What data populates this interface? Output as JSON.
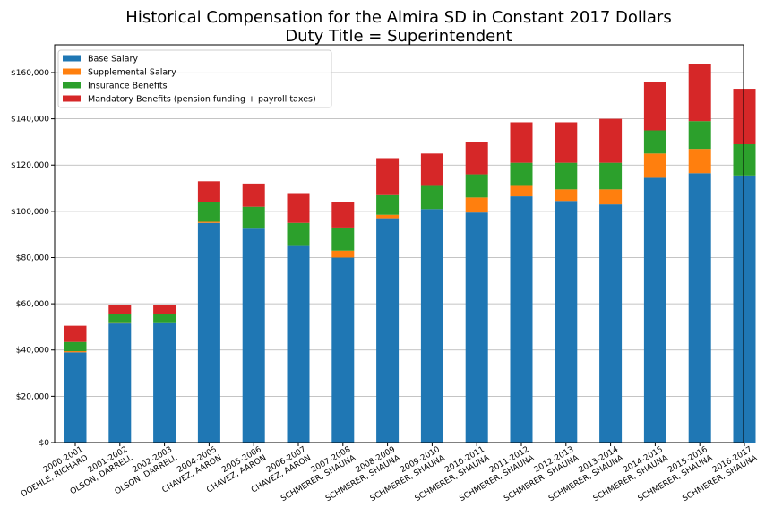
{
  "chart_data": {
    "type": "bar",
    "stacked": true,
    "title": "Historical Compensation for the Almira SD in Constant 2017 Dollars",
    "subtitle": "Duty Title = Superintendent",
    "xlabel": "",
    "ylabel": "",
    "ylim": [
      0,
      172000
    ],
    "yticks": [
      0,
      20000,
      40000,
      60000,
      80000,
      100000,
      120000,
      140000,
      160000
    ],
    "ytick_labels": [
      "$0",
      "$20,000",
      "$40,000",
      "$60,000",
      "$80,000",
      "$100,000",
      "$120,000",
      "$140,000",
      "$160,000"
    ],
    "grid": "horizontal",
    "legend_position": "top-left",
    "categories": [
      [
        "2000-2001",
        "DOEHLE, RICHARD"
      ],
      [
        "2001-2002",
        "OLSON, DARRELL"
      ],
      [
        "2002-2003",
        "OLSON, DARRELL"
      ],
      [
        "2004-2005",
        "CHAVEZ, AARON"
      ],
      [
        "2005-2006",
        "CHAVEZ, AARON"
      ],
      [
        "2006-2007",
        "CHAVEZ, AARON"
      ],
      [
        "2007-2008",
        "SCHMERER, SHAUNA"
      ],
      [
        "2008-2009",
        "SCHMERER, SHAUNA"
      ],
      [
        "2009-2010",
        "SCHMERER, SHAUNA"
      ],
      [
        "2010-2011",
        "SCHMERER, SHAUNA"
      ],
      [
        "2011-2012",
        "SCHMERER, SHAUNA"
      ],
      [
        "2012-2013",
        "SCHMERER, SHAUNA"
      ],
      [
        "2013-2014",
        "SCHMERER, SHAUNA"
      ],
      [
        "2014-2015",
        "SCHMERER, SHAUNA"
      ],
      [
        "2015-2016",
        "SCHMERER, SHAUNA"
      ],
      [
        "2016-2017",
        "SCHMERER, SHAUNA"
      ]
    ],
    "series": [
      {
        "name": "Base Salary",
        "color": "#1f77b4",
        "values": [
          39000,
          51500,
          52000,
          95000,
          92500,
          85000,
          80000,
          97000,
          101000,
          99500,
          106500,
          104500,
          103000,
          114500,
          116500,
          115500
        ]
      },
      {
        "name": "Supplemental Salary",
        "color": "#ff7f0e",
        "values": [
          500,
          500,
          0,
          500,
          0,
          0,
          3000,
          1500,
          0,
          6500,
          4500,
          5000,
          6500,
          10500,
          10500,
          0
        ]
      },
      {
        "name": "Insurance Benefits",
        "color": "#2ca02c",
        "values": [
          4000,
          3500,
          3500,
          8500,
          9500,
          10000,
          10000,
          8500,
          10000,
          10000,
          10000,
          11500,
          11500,
          10000,
          12000,
          13500
        ]
      },
      {
        "name": "Mandatory Benefits (pension funding + payroll taxes)",
        "color": "#d62728",
        "values": [
          7000,
          4000,
          4000,
          9000,
          10000,
          12500,
          11000,
          16000,
          14000,
          14000,
          17500,
          17500,
          19000,
          21000,
          24500,
          24000
        ]
      }
    ]
  }
}
